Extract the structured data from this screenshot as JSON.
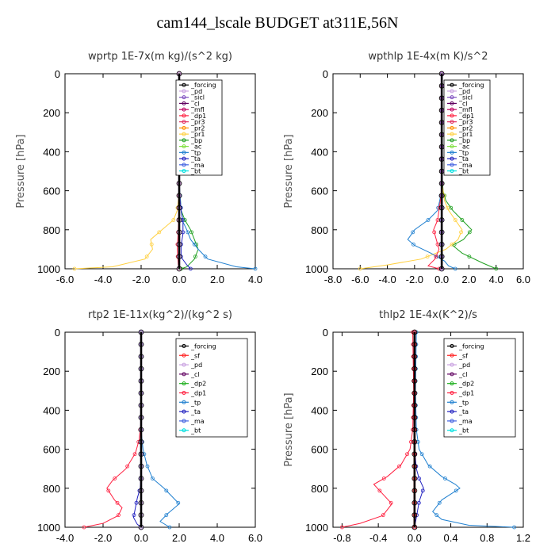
{
  "figure_title": "cam144_lscale  BUDGET at311E,56N",
  "colors": {
    "_forcing": "#000000",
    "_pd": "#c8a0e0",
    "_sicl": "#8050c0",
    "_cl": "#600060",
    "_mfl": "#c00060",
    "_dp1": "#ff2040",
    "_pr3": "#e03060",
    "_pr2": "#ff9000",
    "_pr1": "#ffd040",
    "_bp": "#20a020",
    "_ac": "#80e040",
    "_tp": "#2080d0",
    "_ta": "#2020c0",
    "_ma": "#4060e0",
    "_bt": "#00e0e0",
    "_sf": "#ff2020",
    "_dp2": "#20b020"
  },
  "chart_data": [
    {
      "type": "line",
      "title": "wprtp  1E-7x(m kg)/(s^2 kg)",
      "ylabel": "Pressure [hPa]",
      "xlim": [
        -6.0,
        4.0
      ],
      "ylim": [
        1000,
        0
      ],
      "xticks": [
        "-6.0",
        "-4.0",
        "-2.0",
        "0.0",
        "2.0",
        "4.0"
      ],
      "yticks": [
        "0",
        "200",
        "400",
        "600",
        "800",
        "1000"
      ],
      "legend": [
        "_forcing",
        "_pd",
        "_sicl",
        "_cl",
        "_mfl",
        "_dp1",
        "_pr3",
        "_pr2",
        "_pr1",
        "_bp",
        "_ac",
        "_tp",
        "_ta",
        "_ma",
        "_bt"
      ],
      "series": [
        {
          "name": "_pr1",
          "x": [
            0,
            0,
            0,
            -0.1,
            -0.3,
            -0.9,
            -1.5,
            -1.4,
            -1.8,
            -3.5,
            -5.5
          ],
          "y": [
            0,
            400,
            600,
            700,
            750,
            800,
            850,
            900,
            950,
            990,
            1000
          ]
        },
        {
          "name": "_bp",
          "x": [
            0,
            0,
            0.1,
            0.3,
            0.6,
            0.8,
            1.0,
            0.8,
            0.4,
            0.1
          ],
          "y": [
            0,
            550,
            700,
            750,
            800,
            850,
            900,
            950,
            990,
            1000
          ]
        },
        {
          "name": "_tp",
          "x": [
            0,
            0,
            0.1,
            0.2,
            0.4,
            0.6,
            1.0,
            1.5,
            3.0,
            4.0
          ],
          "y": [
            0,
            550,
            700,
            760,
            800,
            850,
            900,
            950,
            990,
            1000
          ]
        },
        {
          "name": "_ta",
          "x": [
            0,
            0,
            0.1,
            0.2,
            0.2,
            0.1,
            0.1,
            0.4,
            0.6
          ],
          "y": [
            0,
            600,
            700,
            760,
            820,
            880,
            940,
            980,
            1000
          ]
        },
        {
          "name": "_dp1",
          "x": [
            0,
            0,
            -0.05,
            -0.1,
            -0.05,
            0
          ],
          "y": [
            0,
            600,
            800,
            900,
            980,
            1000
          ]
        },
        {
          "name": "_pd",
          "x": [
            0,
            0
          ],
          "y": [
            0,
            1000
          ]
        },
        {
          "name": "_forcing",
          "x": [
            0,
            0
          ],
          "y": [
            0,
            1000
          ]
        }
      ]
    },
    {
      "type": "line",
      "title": "wpthlp  1E-4x(m K)/s^2",
      "ylabel": "Pressure [hPa]",
      "xlim": [
        -8.0,
        6.0
      ],
      "ylim": [
        1000,
        0
      ],
      "xticks": [
        "-8.0",
        "-6.0",
        "-4.0",
        "-2.0",
        "0.0",
        "2.0",
        "4.0",
        "6.0"
      ],
      "yticks": [
        "0",
        "200",
        "400",
        "600",
        "800",
        "1000"
      ],
      "legend": [
        "_forcing",
        "_pd",
        "_sicl",
        "_cl",
        "_mfl",
        "_dp1",
        "_pr3",
        "_pr2",
        "_pr1",
        "_bp",
        "_ac",
        "_tp",
        "_ta",
        "_ma",
        "_bt"
      ],
      "series": [
        {
          "name": "_bp",
          "x": [
            0,
            0,
            0.1,
            0.3,
            0.8,
            1.5,
            2.2,
            1.6,
            0.8,
            1.5,
            3.0,
            4.0
          ],
          "y": [
            0,
            500,
            600,
            650,
            700,
            750,
            800,
            850,
            880,
            920,
            970,
            1000
          ]
        },
        {
          "name": "_pr1",
          "x": [
            0,
            0,
            0.2,
            0.5,
            1.0,
            1.5,
            1.2,
            0.3,
            -1.5,
            -4.0,
            -6.0
          ],
          "y": [
            0,
            550,
            650,
            700,
            750,
            800,
            850,
            900,
            950,
            980,
            1000
          ]
        },
        {
          "name": "_tp",
          "x": [
            0,
            0,
            -0.3,
            -1.0,
            -2.0,
            -2.5,
            -2.0,
            -0.8,
            0.2,
            0.5,
            1.0
          ],
          "y": [
            0,
            600,
            700,
            750,
            800,
            850,
            880,
            920,
            960,
            985,
            1000
          ]
        },
        {
          "name": "_dp1",
          "x": [
            0,
            0,
            -0.3,
            -0.6,
            -0.4,
            -0.2,
            -0.5,
            -1.0,
            -0.2
          ],
          "y": [
            0,
            600,
            750,
            800,
            850,
            900,
            950,
            985,
            1000
          ]
        },
        {
          "name": "_sicl",
          "x": [
            0,
            0
          ],
          "y": [
            0,
            1000
          ]
        },
        {
          "name": "_forcing",
          "x": [
            0,
            0
          ],
          "y": [
            0,
            1000
          ]
        }
      ]
    },
    {
      "type": "line",
      "title": "rtp2  1E-11x(kg^2)/(kg^2 s)",
      "ylabel": "",
      "xlim": [
        -4.0,
        6.0
      ],
      "ylim": [
        1000,
        0
      ],
      "xticks": [
        "-4.0",
        "-2.0",
        "0.0",
        "2.0",
        "4.0",
        "6.0"
      ],
      "yticks": [
        "0",
        "200",
        "400",
        "600",
        "800",
        "1000"
      ],
      "legend": [
        "_forcing",
        "_sf",
        "_pd",
        "_cl",
        "_dp2",
        "_dp1",
        "_tp",
        "_ta",
        "_ma",
        "_bt"
      ],
      "series": [
        {
          "name": "_dp1",
          "x": [
            0,
            0,
            -0.1,
            -0.3,
            -0.8,
            -1.5,
            -1.8,
            -1.4,
            -1.0,
            -1.2,
            -2.0,
            -3.0
          ],
          "y": [
            0,
            450,
            550,
            620,
            700,
            760,
            800,
            860,
            900,
            940,
            980,
            1000
          ]
        },
        {
          "name": "_tp",
          "x": [
            0,
            0,
            0.1,
            0.3,
            0.6,
            1.2,
            1.6,
            2.0,
            1.4,
            1.0,
            1.5
          ],
          "y": [
            0,
            500,
            600,
            680,
            750,
            800,
            840,
            880,
            930,
            970,
            1000
          ]
        },
        {
          "name": "_ta",
          "x": [
            0,
            0,
            -0.05,
            -0.2,
            -0.3,
            -0.4,
            -0.2,
            0
          ],
          "y": [
            0,
            700,
            800,
            850,
            900,
            950,
            985,
            1000
          ]
        },
        {
          "name": "_pd",
          "x": [
            0,
            0
          ],
          "y": [
            0,
            1000
          ]
        },
        {
          "name": "_forcing",
          "x": [
            0,
            0
          ],
          "y": [
            0,
            1000
          ]
        }
      ]
    },
    {
      "type": "line",
      "title": "thlp2  1E-4x(K^2)/s",
      "ylabel": "Pressure [hPa]",
      "xlim": [
        -0.9,
        1.2
      ],
      "ylim": [
        1000,
        0
      ],
      "xticks": [
        "-0.8",
        "-0.4",
        "0.0",
        "0.4",
        "0.8",
        "1.2"
      ],
      "yticks": [
        "0",
        "200",
        "400",
        "600",
        "800",
        "1000"
      ],
      "legend": [
        "_forcing",
        "_sf",
        "_pd",
        "_cl",
        "_dp2",
        "_dp1",
        "_tp",
        "_ta",
        "_ma",
        "_bt"
      ],
      "series": [
        {
          "name": "_dp1",
          "x": [
            -0.02,
            -0.01,
            -0.02,
            -0.05,
            -0.15,
            -0.3,
            -0.45,
            -0.35,
            -0.25,
            -0.35,
            -0.6,
            -0.8
          ],
          "y": [
            0,
            300,
            500,
            600,
            680,
            740,
            780,
            830,
            880,
            940,
            980,
            1000
          ]
        },
        {
          "name": "_tp",
          "x": [
            0.02,
            0.01,
            0.02,
            0.05,
            0.15,
            0.3,
            0.45,
            0.5,
            0.3,
            0.2,
            0.3,
            0.6,
            1.1
          ],
          "y": [
            0,
            300,
            500,
            600,
            680,
            740,
            780,
            800,
            860,
            920,
            960,
            990,
            1000
          ]
        },
        {
          "name": "_ta",
          "x": [
            0,
            0,
            0.02,
            0.05,
            0.1,
            0.05,
            0.02,
            0
          ],
          "y": [
            0,
            600,
            700,
            750,
            800,
            870,
            950,
            1000
          ]
        },
        {
          "name": "_sf",
          "x": [
            0,
            0
          ],
          "y": [
            0,
            1000
          ]
        },
        {
          "name": "_forcing",
          "x": [
            0,
            0
          ],
          "y": [
            0,
            1000
          ]
        }
      ]
    }
  ]
}
